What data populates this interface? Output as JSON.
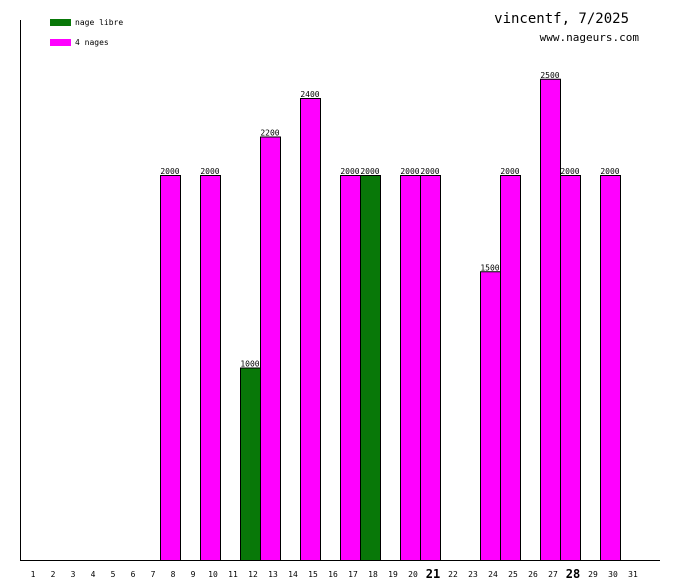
{
  "title": "vincentf, 7/2025",
  "subtitle": "www.nageurs.com",
  "chart_data": {
    "type": "bar",
    "categories": [
      "1",
      "2",
      "3",
      "4",
      "5",
      "6",
      "7",
      "8",
      "9",
      "10",
      "11",
      "12",
      "13",
      "14",
      "15",
      "16",
      "17",
      "18",
      "19",
      "20",
      "21",
      "22",
      "23",
      "24",
      "25",
      "26",
      "27",
      "28",
      "29",
      "30",
      "31"
    ],
    "bold_categories": [
      "21",
      "28"
    ],
    "ylim": [
      0,
      2800
    ],
    "grid": false,
    "legend_position": "top-left",
    "series": [
      {
        "name": "nage libre",
        "color": "#087808",
        "points": [
          {
            "day": 12,
            "value": 1000
          },
          {
            "day": 18,
            "value": 2000
          }
        ]
      },
      {
        "name": "4 nages",
        "color": "#ff00ff",
        "points": [
          {
            "day": 8,
            "value": 2000
          },
          {
            "day": 10,
            "value": 2000
          },
          {
            "day": 13,
            "value": 2200
          },
          {
            "day": 15,
            "value": 2400
          },
          {
            "day": 17,
            "value": 2000
          },
          {
            "day": 20,
            "value": 2000
          },
          {
            "day": 21,
            "value": 2000
          },
          {
            "day": 24,
            "value": 1500
          },
          {
            "day": 25,
            "value": 2000
          },
          {
            "day": 27,
            "value": 2500
          },
          {
            "day": 28,
            "value": 2000
          },
          {
            "day": 30,
            "value": 2000
          }
        ]
      }
    ]
  }
}
